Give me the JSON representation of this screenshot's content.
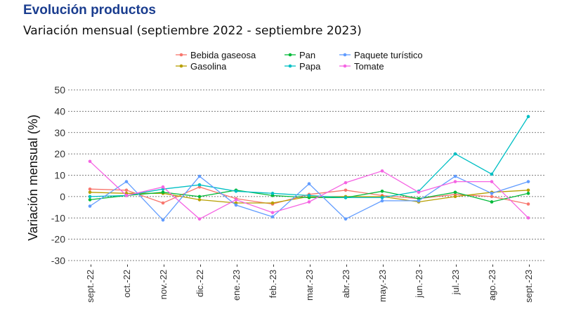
{
  "title": "Evolución productos",
  "subtitle": "Variación mensual (septiembre 2022 - septiembre 2023)",
  "chart_data": {
    "type": "line",
    "title": "Evolución productos",
    "subtitle": "Variación mensual (septiembre 2022 - septiembre 2023)",
    "xlabel": "",
    "ylabel": "Variación mensual (%)",
    "ylim": [
      -30,
      50
    ],
    "yticks": [
      50,
      40,
      30,
      20,
      10,
      0,
      -10,
      -20,
      -30
    ],
    "grid": true,
    "legend_position": "top",
    "categories": [
      "sept.-22",
      "oct.-22",
      "nov.-22",
      "dic.-22",
      "ene.-23",
      "feb.-23",
      "mar.-23",
      "abr.-23",
      "may.-23",
      "jun.-23",
      "jul.-23",
      "ago.-23",
      "sept.-23"
    ],
    "series": [
      {
        "name": "Bebida gaseosa",
        "color": "#f8766d",
        "values": [
          3.5,
          3.0,
          -3.0,
          4.5,
          -1.0,
          -3.5,
          1.0,
          3.0,
          0.5,
          -1.0,
          1.0,
          0.0,
          -3.5
        ]
      },
      {
        "name": "Gasolina",
        "color": "#b79f00",
        "values": [
          2.0,
          1.5,
          1.5,
          -1.5,
          -3.0,
          -3.0,
          0.0,
          0.0,
          0.0,
          -2.5,
          0.0,
          2.0,
          3.0
        ]
      },
      {
        "name": "Pan",
        "color": "#00ba38",
        "values": [
          -1.5,
          0.5,
          2.0,
          0.0,
          3.0,
          0.5,
          -0.5,
          -0.5,
          2.5,
          -1.0,
          2.0,
          -2.5,
          1.5
        ]
      },
      {
        "name": "Papa",
        "color": "#00bfc4",
        "values": [
          0.0,
          0.5,
          3.5,
          5.5,
          2.5,
          1.5,
          0.5,
          -0.5,
          -0.5,
          2.5,
          20.0,
          10.5,
          37.5
        ]
      },
      {
        "name": "Paquete turístico",
        "color": "#619cff",
        "values": [
          -4.5,
          7.0,
          -11.0,
          9.5,
          -4.0,
          -9.5,
          6.0,
          -10.5,
          -2.0,
          -2.0,
          9.5,
          1.5,
          7.0
        ]
      },
      {
        "name": "Tomate",
        "color": "#f564e3",
        "values": [
          16.5,
          0.5,
          4.5,
          -10.5,
          -1.5,
          -7.5,
          -2.5,
          6.5,
          12.0,
          2.0,
          7.0,
          7.0,
          -10.0
        ]
      }
    ]
  }
}
